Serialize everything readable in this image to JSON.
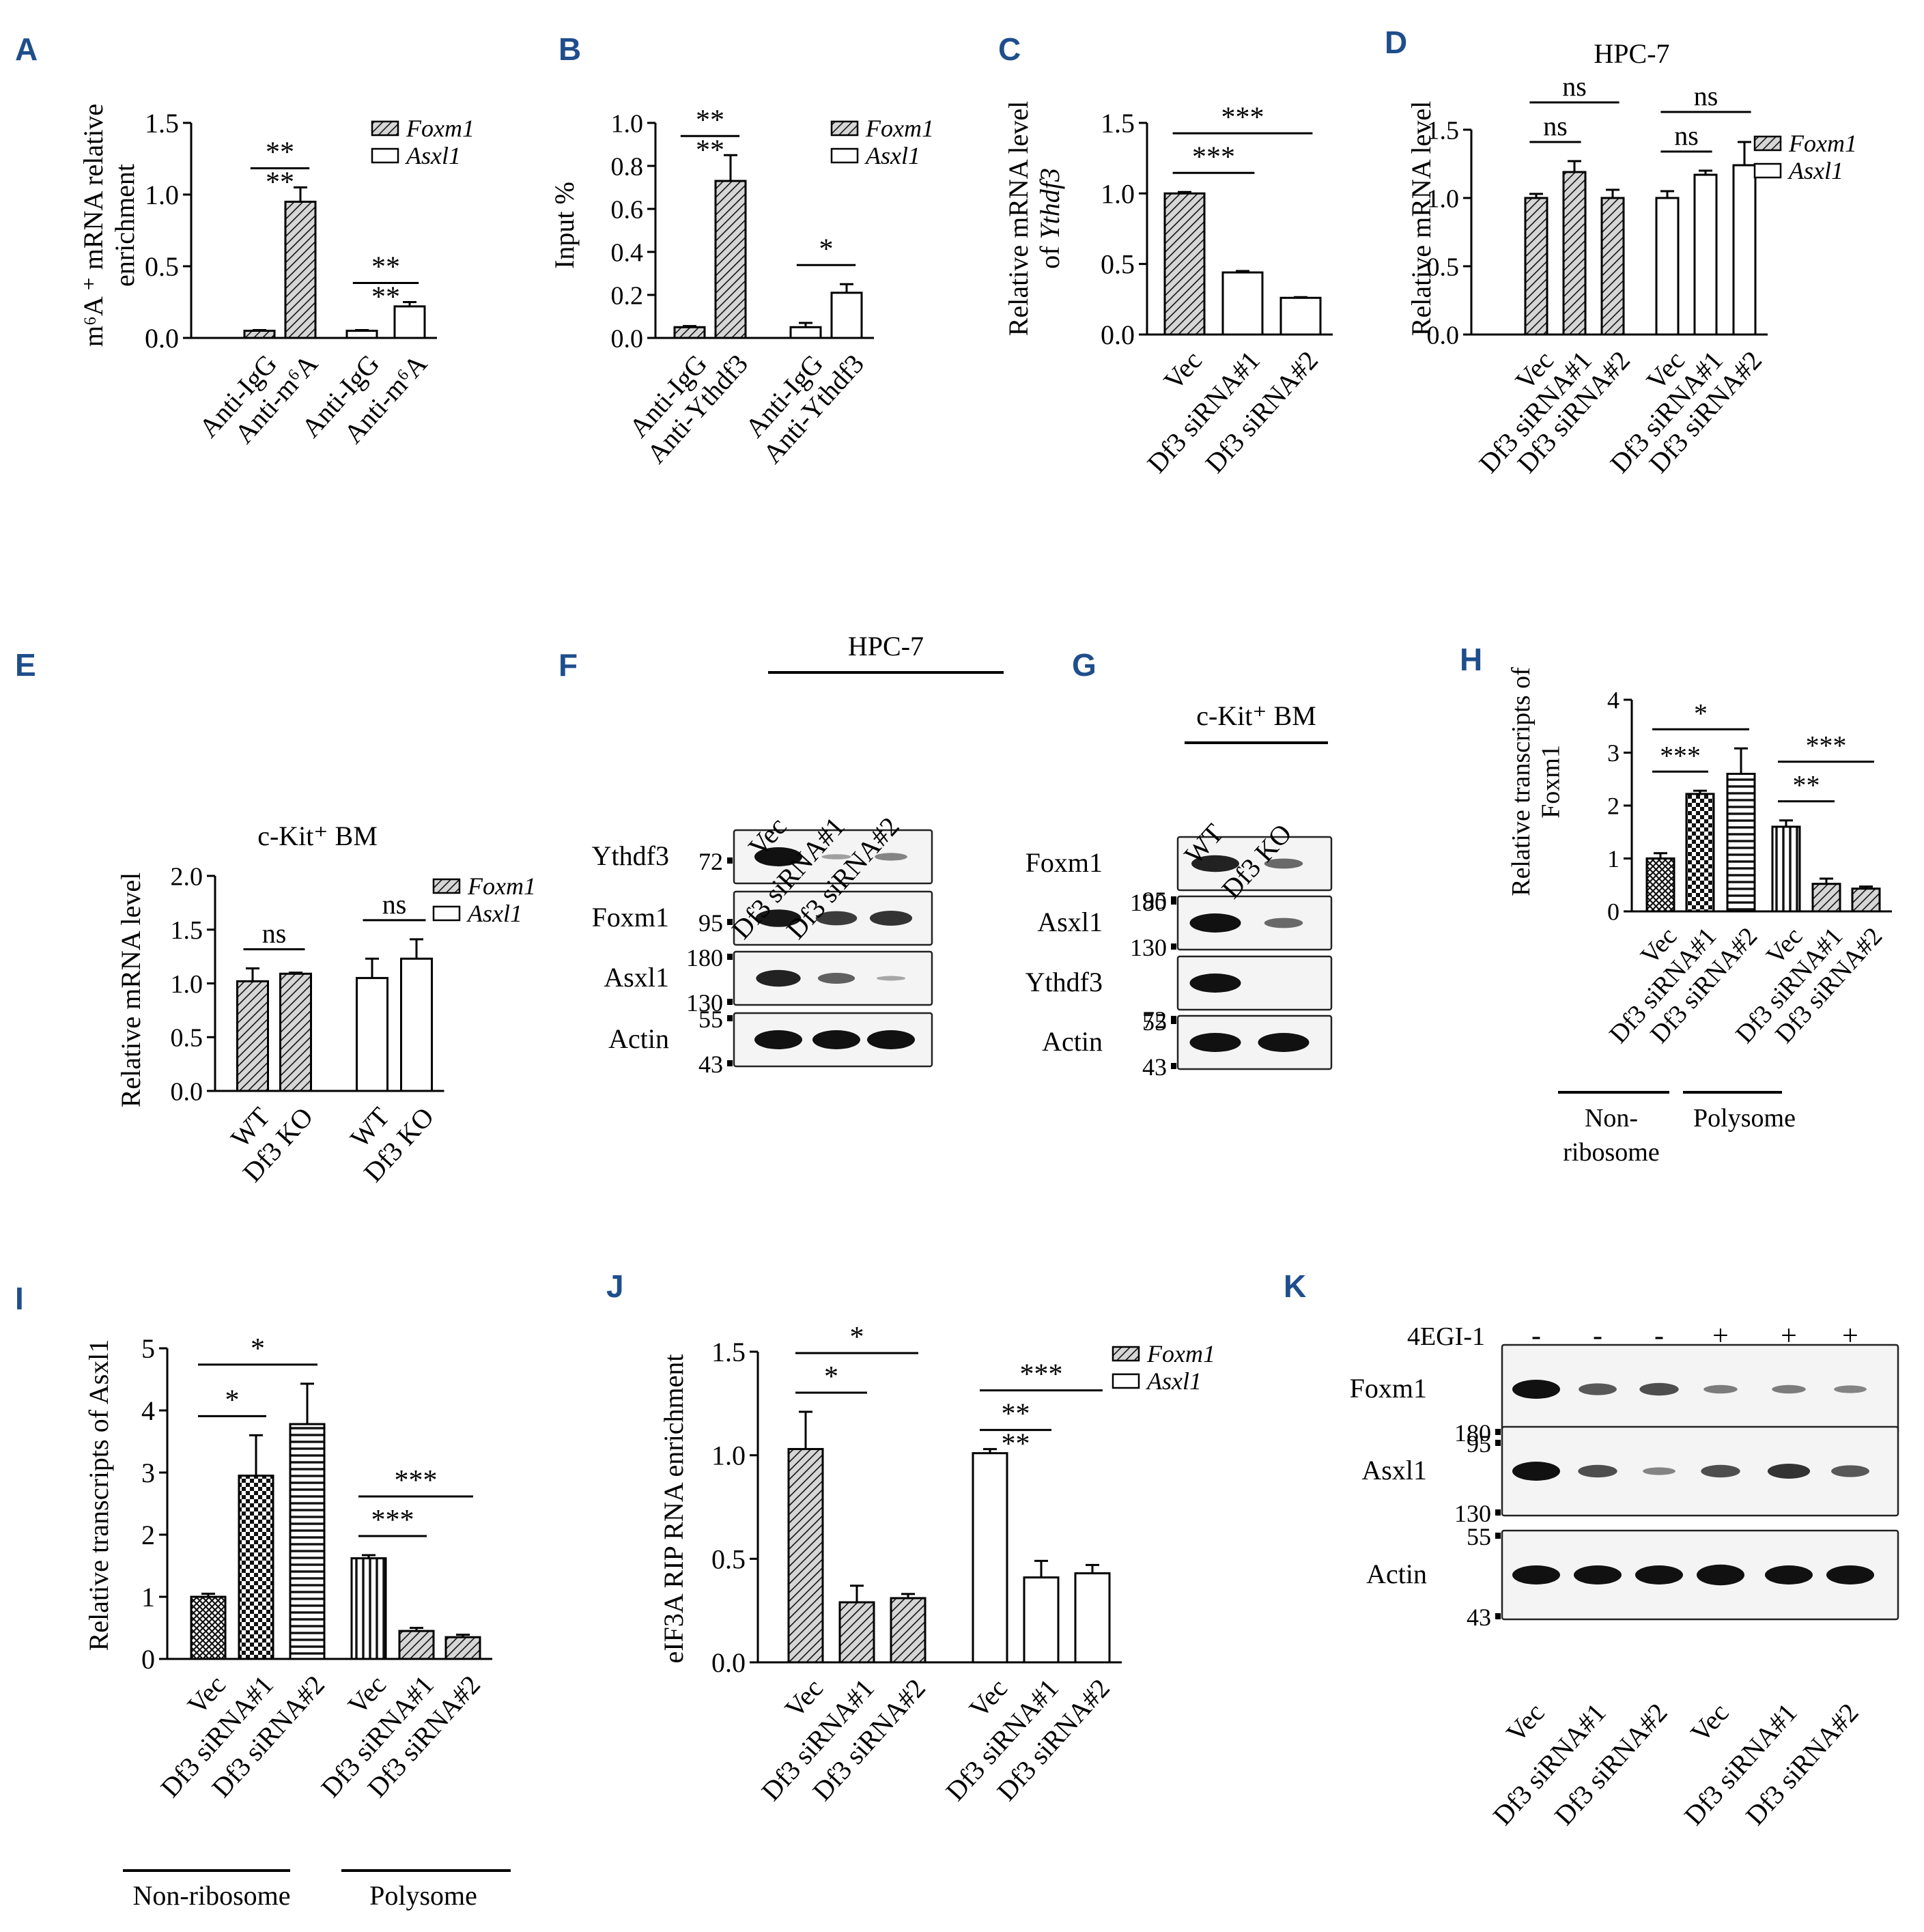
{
  "panel_letters": {
    "A": "A",
    "B": "B",
    "C": "C",
    "D": "D",
    "E": "E",
    "F": "F",
    "G": "G",
    "H": "H",
    "I": "I",
    "J": "J",
    "K": "K"
  },
  "legend_genes": [
    "Foxm1",
    "Asxl1"
  ],
  "chart_data": [
    {
      "id": "A",
      "type": "bar",
      "title": "",
      "ylabel": "m6A + mRNA relative enrichment",
      "ylabel_lines": [
        "m⁶A ⁺ mRNA relative",
        "enrichment"
      ],
      "ylim": [
        0,
        1.5
      ],
      "yticks": [
        "0.0",
        "0.5",
        "1.0",
        "1.5"
      ],
      "categories": [
        "Anti-IgG",
        "Anti-m⁶A",
        "Anti-IgG",
        "Anti-m⁶A"
      ],
      "values": [
        0.05,
        0.95,
        0.05,
        0.22
      ],
      "errors": [
        0.005,
        0.1,
        0.005,
        0.03
      ],
      "series_index": [
        0,
        0,
        1,
        1
      ],
      "legend": [
        "Foxm1",
        "Asxl1"
      ],
      "significance": [
        {
          "from": 0,
          "to": 1,
          "label": "**\n**"
        },
        {
          "from": 2,
          "to": 3,
          "label": "**\n**"
        }
      ]
    },
    {
      "id": "B",
      "type": "bar",
      "title": "",
      "ylabel": "Input %",
      "ylim": [
        0,
        1.0
      ],
      "yticks": [
        "0.0",
        "0.2",
        "0.4",
        "0.6",
        "0.8",
        "1.0"
      ],
      "categories": [
        "Anti-IgG",
        "Anti-Ythdf3",
        "Anti-IgG",
        "Anti-Ythdf3"
      ],
      "values": [
        0.05,
        0.73,
        0.05,
        0.21
      ],
      "errors": [
        0.005,
        0.12,
        0.02,
        0.04
      ],
      "series_index": [
        0,
        0,
        1,
        1
      ],
      "legend": [
        "Foxm1",
        "Asxl1"
      ],
      "significance": [
        {
          "from": 0,
          "to": 1,
          "label": "**\n**"
        },
        {
          "from": 2,
          "to": 3,
          "label": "*"
        }
      ]
    },
    {
      "id": "C",
      "type": "bar",
      "title": "",
      "ylabel": "Relative mRNA level of Ythdf3",
      "ylabel_lines": [
        "Relative mRNA level",
        "of Ythdf3"
      ],
      "ylim": [
        0,
        1.5
      ],
      "yticks": [
        "0.0",
        "0.5",
        "1.0",
        "1.5"
      ],
      "categories": [
        "Vec",
        "Df3 siRNA#1",
        "Df3 siRNA#2"
      ],
      "values": [
        1.0,
        0.44,
        0.26
      ],
      "errors": [
        0.01,
        0.01,
        0.005
      ],
      "series_index": [
        0,
        1,
        1
      ],
      "legend": [],
      "significance": [
        {
          "from": 0,
          "to": 1,
          "label": "***"
        },
        {
          "from": 0,
          "to": 2,
          "label": "***"
        }
      ]
    },
    {
      "id": "D",
      "type": "bar",
      "title": "HPC-7",
      "ylabel": "Relative mRNA level",
      "ylim": [
        0,
        1.5
      ],
      "yticks": [
        "0.0",
        "0.5",
        "1.0",
        "1.5"
      ],
      "categories": [
        "Vec",
        "Df3 siRNA#1",
        "Df3 siRNA#2",
        "Vec",
        "Df3 siRNA#1",
        "Df3 siRNA#2"
      ],
      "values": [
        1.0,
        1.19,
        1.0,
        1.0,
        1.17,
        1.24
      ],
      "errors": [
        0.03,
        0.08,
        0.06,
        0.05,
        0.03,
        0.17
      ],
      "series_index": [
        0,
        0,
        0,
        1,
        1,
        1
      ],
      "legend": [
        "Foxm1",
        "Asxl1"
      ],
      "significance": [
        {
          "from": 0,
          "to": 1,
          "label": "ns"
        },
        {
          "from": 0,
          "to": 2,
          "label": "ns"
        },
        {
          "from": 3,
          "to": 4,
          "label": "ns"
        },
        {
          "from": 3,
          "to": 5,
          "label": "ns"
        }
      ]
    },
    {
      "id": "E",
      "type": "bar",
      "title": "c-Kit⁺ BM",
      "ylabel": "Relative mRNA level",
      "ylim": [
        0,
        2.0
      ],
      "yticks": [
        "0.0",
        "0.5",
        "1.0",
        "1.5",
        "2.0"
      ],
      "categories": [
        "WT",
        "Df3 KO",
        "WT",
        "Df3 KO"
      ],
      "values": [
        1.02,
        1.09,
        1.05,
        1.23
      ],
      "errors": [
        0.12,
        0.01,
        0.18,
        0.18
      ],
      "series_index": [
        0,
        0,
        1,
        1
      ],
      "legend": [
        "Foxm1",
        "Asxl1"
      ],
      "significance": [
        {
          "from": 0,
          "to": 1,
          "label": "ns"
        },
        {
          "from": 2,
          "to": 3,
          "label": "ns"
        }
      ]
    },
    {
      "id": "H",
      "type": "bar",
      "title": "",
      "ylabel": "Relative transcripts of Foxm1",
      "ylabel_lines": [
        "Relative transcripts of",
        "Foxm1"
      ],
      "ylim": [
        0,
        4
      ],
      "yticks": [
        "0",
        "1",
        "2",
        "3",
        "4"
      ],
      "categories": [
        "Vec",
        "Df3 siRNA#1",
        "Df3 siRNA#2",
        "Vec",
        "Df3 siRNA#1",
        "Df3 siRNA#2"
      ],
      "values": [
        1.0,
        2.22,
        2.6,
        1.6,
        0.52,
        0.43
      ],
      "errors": [
        0.1,
        0.06,
        0.48,
        0.12,
        0.1,
        0.04
      ],
      "patterns": [
        "cross",
        "check",
        "hstripe",
        "vstripe",
        "diag",
        "diag"
      ],
      "groups": [
        "Non-ribosome",
        "Polysome"
      ],
      "significance": [
        {
          "from": 0,
          "to": 1,
          "label": "***"
        },
        {
          "from": 0,
          "to": 2,
          "label": "*"
        },
        {
          "from": 3,
          "to": 4,
          "label": "**"
        },
        {
          "from": 3,
          "to": 5,
          "label": "***"
        }
      ]
    },
    {
      "id": "I",
      "type": "bar",
      "title": "",
      "ylabel": "Relative transcripts of Asxl1",
      "ylim": [
        0,
        5
      ],
      "yticks": [
        "0",
        "1",
        "2",
        "3",
        "4",
        "5"
      ],
      "categories": [
        "Vec",
        "Df3 siRNA#1",
        "Df3 siRNA#2",
        "Vec",
        "Df3 siRNA#1",
        "Df3 siRNA#2"
      ],
      "values": [
        1.0,
        2.95,
        3.78,
        1.62,
        0.45,
        0.35
      ],
      "errors": [
        0.05,
        0.65,
        0.65,
        0.05,
        0.05,
        0.04
      ],
      "patterns": [
        "cross",
        "check",
        "hstripe",
        "vstripe",
        "diag",
        "diag"
      ],
      "groups": [
        "Non-ribosome",
        "Polysome"
      ],
      "significance": [
        {
          "from": 0,
          "to": 1,
          "label": "*"
        },
        {
          "from": 0,
          "to": 2,
          "label": "*"
        },
        {
          "from": 3,
          "to": 4,
          "label": "***"
        },
        {
          "from": 3,
          "to": 5,
          "label": "***"
        }
      ]
    },
    {
      "id": "J",
      "type": "bar",
      "title": "",
      "ylabel": "eIF3A RIP RNA enrichment",
      "ylim": [
        0,
        1.5
      ],
      "yticks": [
        "0.0",
        "0.5",
        "1.0",
        "1.5"
      ],
      "categories": [
        "Vec",
        "Df3 siRNA#1",
        "Df3 siRNA#2",
        "Vec",
        "Df3 siRNA#1",
        "Df3 siRNA#2"
      ],
      "values": [
        1.03,
        0.29,
        0.31,
        1.01,
        0.41,
        0.43
      ],
      "errors": [
        0.18,
        0.08,
        0.02,
        0.02,
        0.08,
        0.04
      ],
      "series_index": [
        0,
        0,
        0,
        1,
        1,
        1
      ],
      "legend": [
        "Foxm1",
        "Asxl1"
      ],
      "significance": [
        {
          "from": 0,
          "to": 1,
          "label": "*"
        },
        {
          "from": 0,
          "to": 2,
          "label": "*"
        },
        {
          "from": 3,
          "to": 4,
          "label": "**\n**"
        },
        {
          "from": 3,
          "to": 5,
          "label": "***"
        }
      ]
    }
  ],
  "blots": {
    "F": {
      "title": "HPC-7",
      "lanes": [
        "Vec",
        "Df3 siRNA#1",
        "Df3 siRNA#2"
      ],
      "rows": [
        {
          "protein": "Ythdf3",
          "markers": [
            "72"
          ],
          "intensity": [
            1.0,
            0.15,
            0.3
          ]
        },
        {
          "protein": "Foxm1",
          "markers": [
            "95"
          ],
          "intensity": [
            0.9,
            0.7,
            0.75
          ]
        },
        {
          "protein": "Asxl1",
          "markers": [
            "180",
            "130"
          ],
          "intensity": [
            0.85,
            0.5,
            0.12
          ]
        },
        {
          "protein": "Actin",
          "markers": [
            "55",
            "43"
          ],
          "intensity": [
            1.0,
            1.0,
            1.0
          ]
        }
      ]
    },
    "G": {
      "title": "c-Kit⁺ BM",
      "lanes": [
        "WT",
        "Df3 KO"
      ],
      "rows": [
        {
          "protein": "Foxm1",
          "markers": [
            "95"
          ],
          "intensity": [
            0.85,
            0.45
          ]
        },
        {
          "protein": "Asxl1",
          "markers": [
            "180",
            "130"
          ],
          "intensity": [
            1.0,
            0.45
          ]
        },
        {
          "protein": "Ythdf3",
          "markers": [
            "72"
          ],
          "intensity": [
            1.0,
            0.0
          ]
        },
        {
          "protein": "Actin",
          "markers": [
            "55",
            "43"
          ],
          "intensity": [
            1.0,
            1.0
          ]
        }
      ]
    },
    "K": {
      "treatment_label": "4EGI-1",
      "treatment": [
        "-",
        "-",
        "-",
        "+",
        "+",
        "+"
      ],
      "lanes": [
        "Vec",
        "Df3 siRNA#1",
        "Df3 siRNA#2",
        "Vec",
        "Df3 siRNA#1",
        "Df3 siRNA#2"
      ],
      "rows": [
        {
          "protein": "Foxm1",
          "markers": [
            "95"
          ],
          "intensity": [
            1.0,
            0.55,
            0.6,
            0.35,
            0.35,
            0.3
          ]
        },
        {
          "protein": "Asxl1",
          "markers": [
            "180",
            "130"
          ],
          "intensity": [
            1.0,
            0.6,
            0.3,
            0.6,
            0.75,
            0.55
          ]
        },
        {
          "protein": "Actin",
          "markers": [
            "55",
            "43"
          ],
          "intensity": [
            1.0,
            1.0,
            1.0,
            1.1,
            1.0,
            1.0
          ]
        }
      ]
    }
  }
}
